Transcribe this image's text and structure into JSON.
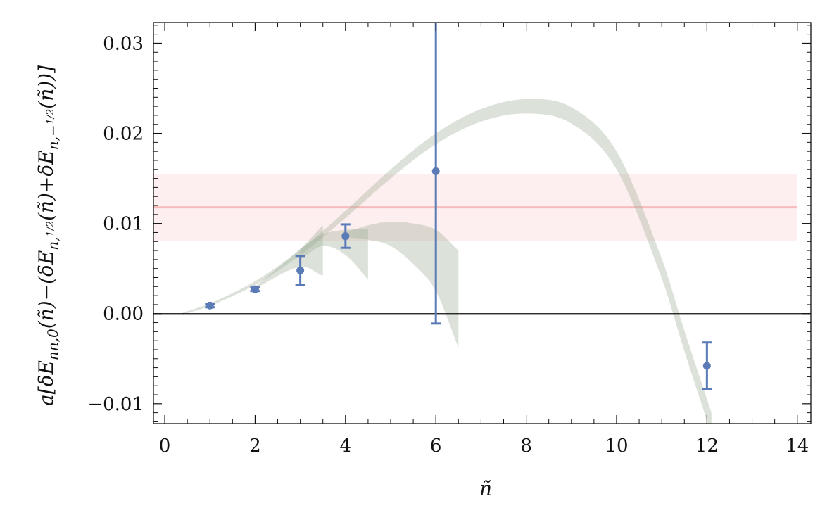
{
  "chart_data": {
    "type": "scatter",
    "title": "",
    "xlabel": "ñ",
    "ylabel_parts": {
      "p1": "a[δE",
      "p1_sub": "nn,0",
      "p2": "(ñ)−(δE",
      "p2_sub": "n,",
      "p2_frac_num": "1",
      "p2_frac_den": "2",
      "p3": "(ñ)+δE",
      "p3_sub": "n,−",
      "p3_frac_num": "1",
      "p3_frac_den": "2",
      "p4": "(ñ))]"
    },
    "xlim": [
      -0.25,
      14.3
    ],
    "ylim": [
      -0.0122,
      0.0323
    ],
    "x_ticks": [
      0,
      2,
      4,
      6,
      8,
      10,
      12,
      14
    ],
    "x_tick_labels": [
      "0",
      "2",
      "4",
      "6",
      "8",
      "10",
      "12",
      "14"
    ],
    "y_ticks": [
      -0.01,
      0.0,
      0.01,
      0.02,
      0.03
    ],
    "y_tick_labels": [
      "−0.01",
      "0.00",
      "0.01",
      "0.02",
      "0.03"
    ],
    "grid": false,
    "series": [
      {
        "kind": "points_with_errorbars",
        "color": "#5b7bb6",
        "points": [
          {
            "x": 1,
            "y": 0.0009,
            "err": 0.0002
          },
          {
            "x": 2,
            "y": 0.0027,
            "err": 0.0002
          },
          {
            "x": 3,
            "y": 0.0048,
            "err": 0.0016
          },
          {
            "x": 4,
            "y": 0.0086,
            "err": 0.0013
          },
          {
            "x": 6,
            "y": 0.0158,
            "err": 0.0169
          },
          {
            "x": 12,
            "y": -0.0058,
            "err": 0.0026
          }
        ]
      }
    ],
    "constant_band": {
      "center": 0.0118,
      "lower": 0.0081,
      "upper": 0.0155,
      "x_from": -0.25,
      "x_to": 14.0,
      "color": "#f2a7a7"
    },
    "fit_bands": [
      {
        "name": "",
        "color": "#9aab94",
        "center": [
          [
            0.4,
            0.0
          ],
          [
            1,
            0.001
          ],
          [
            2,
            0.0034
          ],
          [
            3,
            0.0068
          ],
          [
            4,
            0.011
          ],
          [
            5,
            0.0155
          ],
          [
            6,
            0.0194
          ],
          [
            7,
            0.022
          ],
          [
            8,
            0.023
          ],
          [
            9,
            0.022
          ],
          [
            10,
            0.017
          ],
          [
            11,
            0.005
          ],
          [
            11.5,
            -0.003
          ],
          [
            12.1,
            -0.0122
          ]
        ],
        "half_width": [
          [
            0.4,
            0.0001
          ],
          [
            2,
            0.0002
          ],
          [
            4,
            0.0004
          ],
          [
            6,
            0.0006
          ],
          [
            8,
            0.0008
          ],
          [
            10,
            0.001
          ],
          [
            12.1,
            0.0012
          ]
        ]
      },
      {
        "name": "",
        "color": "#9aab94",
        "upper": [
          [
            2,
            0.003
          ],
          [
            3,
            0.0072
          ],
          [
            3.5,
            0.0098
          ]
        ],
        "lower": [
          [
            2,
            0.0028
          ],
          [
            3,
            0.0052
          ],
          [
            3.5,
            0.0042
          ]
        ]
      },
      {
        "name": "",
        "color": "#9aab94",
        "upper": [
          [
            3,
            0.0072
          ],
          [
            3.5,
            0.0088
          ],
          [
            4,
            0.0093
          ],
          [
            4.5,
            0.0094
          ]
        ],
        "lower": [
          [
            3,
            0.006
          ],
          [
            3.5,
            0.0075
          ],
          [
            4,
            0.0065
          ],
          [
            4.5,
            0.0038
          ]
        ]
      },
      {
        "name": "",
        "color": "#9aab94",
        "upper": [
          [
            4,
            0.009
          ],
          [
            4.5,
            0.0098
          ],
          [
            5,
            0.0102
          ],
          [
            5.5,
            0.01
          ],
          [
            6,
            0.0093
          ],
          [
            6.5,
            0.007
          ]
        ],
        "lower": [
          [
            4,
            0.0085
          ],
          [
            4.5,
            0.0082
          ],
          [
            5,
            0.0075
          ],
          [
            5.5,
            0.0055
          ],
          [
            6,
            0.0025
          ],
          [
            6.5,
            -0.0038
          ]
        ]
      }
    ]
  }
}
